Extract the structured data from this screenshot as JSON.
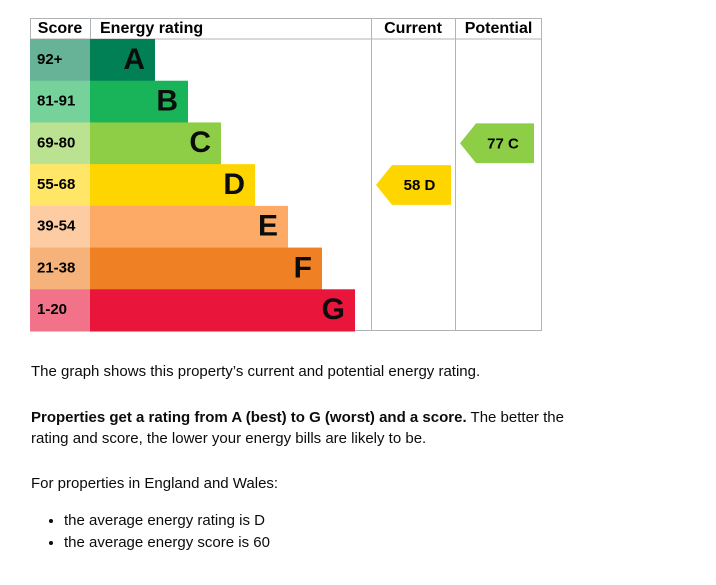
{
  "table": {
    "headers": [
      "Score",
      "Energy rating",
      "Current",
      "Potential"
    ],
    "rows": [
      {
        "score": "92+",
        "band": "A",
        "color": "#008054",
        "tint": "#66b398"
      },
      {
        "score": "81-91",
        "band": "B",
        "color": "#19b459",
        "tint": "#75d29b"
      },
      {
        "score": "69-80",
        "band": "C",
        "color": "#8dce46",
        "tint": "#bbe290"
      },
      {
        "score": "55-68",
        "band": "D",
        "color": "#ffd500",
        "tint": "#ffe666"
      },
      {
        "score": "39-54",
        "band": "E",
        "color": "#fcaa65",
        "tint": "#fdcca3"
      },
      {
        "score": "21-38",
        "band": "F",
        "color": "#ef8023",
        "tint": "#f5b37b"
      },
      {
        "score": "1-20",
        "band": "G",
        "color": "#e9153b",
        "tint": "#f27389"
      }
    ]
  },
  "current": {
    "score": 58,
    "band": "D"
  },
  "potential": {
    "score": 77,
    "band": "C"
  },
  "text": {
    "intro": "The graph shows this property’s current and potential energy rating.",
    "rating_bold": "Properties get a rating from A (best) to G (worst) and a score.",
    "rating_rest": "The better the rating and score, the lower your energy bills are likely to be.",
    "region": "For properties in England and Wales:",
    "bullets": [
      "the average energy rating is D",
      "the average energy score is 60"
    ]
  }
}
